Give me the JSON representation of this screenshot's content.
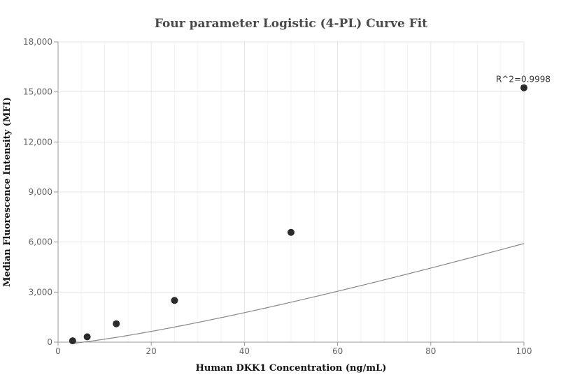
{
  "chart_data": {
    "type": "scatter",
    "title": "Four parameter Logistic (4-PL) Curve Fit",
    "xlabel": "Human DKK1 Concentration (ng/mL)",
    "ylabel": "Median Fluorescence Intensity (MFI)",
    "xlim": [
      0,
      100
    ],
    "ylim": [
      0,
      18000
    ],
    "x_ticks": [
      0,
      20,
      40,
      60,
      80,
      100
    ],
    "y_ticks": [
      0,
      3000,
      6000,
      9000,
      12000,
      15000,
      18000
    ],
    "x_tick_labels": [
      "0",
      "20",
      "40",
      "60",
      "80",
      "100"
    ],
    "y_tick_labels": [
      "0",
      "3,000",
      "6,000",
      "9,000",
      "12,000",
      "15,000",
      "18,000"
    ],
    "grid": true,
    "series": [
      {
        "points": [
          {
            "x": 3.125,
            "y": 80
          },
          {
            "x": 6.25,
            "y": 320
          },
          {
            "x": 12.5,
            "y": 1100
          },
          {
            "x": 25,
            "y": 2500
          },
          {
            "x": 50,
            "y": 6580
          },
          {
            "x": 100,
            "y": 15250
          }
        ],
        "color": "#2b2b2b"
      }
    ],
    "fit_curve": {
      "model": "4PL",
      "bottom": -150,
      "top": 200000,
      "ec50": 1500,
      "hill": 1.28,
      "color": "#888888"
    },
    "annotation": {
      "text": "R^2=0.9998",
      "x": 100,
      "y": 15250
    }
  }
}
